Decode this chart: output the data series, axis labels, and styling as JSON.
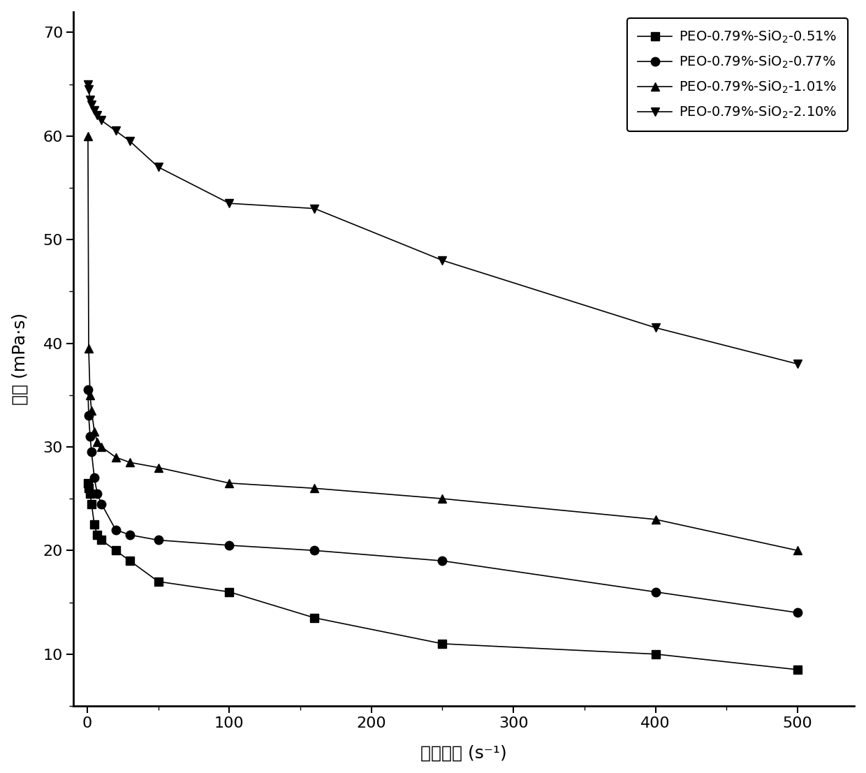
{
  "series": [
    {
      "label": "PEO-0.79%-SiO$_2$-0.51%",
      "marker": "s",
      "linestyle": "-",
      "x": [
        0.5,
        1,
        2,
        3,
        5,
        7,
        10,
        20,
        30,
        50,
        100,
        160,
        250,
        400,
        500
      ],
      "y": [
        26.5,
        26.0,
        25.5,
        24.5,
        22.5,
        21.5,
        21.0,
        20.0,
        19.0,
        17.0,
        16.0,
        13.5,
        11.0,
        10.0,
        8.5
      ]
    },
    {
      "label": "PEO-0.79%-SiO$_2$-0.77%",
      "marker": "o",
      "linestyle": "-",
      "x": [
        0.5,
        1,
        2,
        3,
        5,
        7,
        10,
        20,
        30,
        50,
        100,
        160,
        250,
        400,
        500
      ],
      "y": [
        35.5,
        33.0,
        31.0,
        29.5,
        27.0,
        25.5,
        24.5,
        22.0,
        21.5,
        21.0,
        20.5,
        20.0,
        19.0,
        16.0,
        14.0
      ]
    },
    {
      "label": "PEO-0.79%-SiO$_2$-1.01%",
      "marker": "^",
      "linestyle": "-",
      "x": [
        0.5,
        1,
        2,
        3,
        5,
        7,
        10,
        20,
        30,
        50,
        100,
        160,
        250,
        400,
        500
      ],
      "y": [
        60.0,
        39.5,
        35.0,
        33.5,
        31.5,
        30.5,
        30.0,
        29.0,
        28.5,
        28.0,
        26.5,
        26.0,
        25.0,
        23.0,
        20.0
      ]
    },
    {
      "label": "PEO-0.79%-SiO$_2$-2.10%",
      "marker": "v",
      "linestyle": "-",
      "x": [
        0.5,
        1,
        2,
        3,
        5,
        7,
        10,
        20,
        30,
        50,
        100,
        160,
        250,
        400,
        500
      ],
      "y": [
        65.0,
        64.5,
        63.5,
        63.0,
        62.5,
        62.0,
        61.5,
        60.5,
        59.5,
        57.0,
        53.5,
        53.0,
        48.0,
        41.5,
        38.0
      ]
    }
  ],
  "xlabel": "剪切速率 (s⁻¹)",
  "ylabel": "粘度 (mPa·s)",
  "xlim": [
    -10,
    540
  ],
  "ylim": [
    5,
    72
  ],
  "yticks": [
    10,
    20,
    30,
    40,
    50,
    60,
    70
  ],
  "xticks": [
    0,
    100,
    200,
    300,
    400,
    500
  ],
  "color": "black",
  "markersize": 9,
  "linewidth": 1.2,
  "legend_fontsize": 14,
  "axis_fontsize": 18,
  "tick_fontsize": 16,
  "background_color": "#ffffff"
}
